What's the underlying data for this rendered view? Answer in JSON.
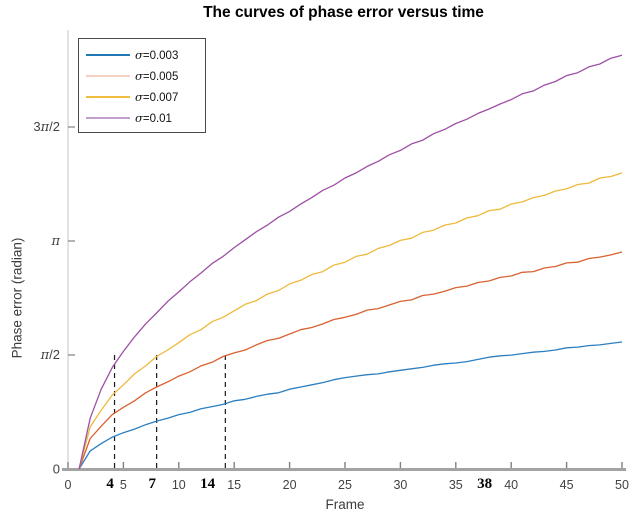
{
  "figure": {
    "title": "The curves of phase error versus time",
    "xlabel": "Frame",
    "ylabel": "Phase error (radian)"
  },
  "colors": {
    "axis_line": "#a3a3a3",
    "y_axis_line": "#c4c4c4",
    "tick_mark": "#808080",
    "annotation_line": "#1a1a1a",
    "background": "#ffffff"
  },
  "chart_data": {
    "type": "line",
    "title": "The curves of phase error versus time",
    "xlabel": "Frame",
    "ylabel": "Phase error (radian)",
    "xlim": [
      0,
      50
    ],
    "ylim": [
      0,
      6.05
    ],
    "grid": false,
    "legend_position": "top-left",
    "x_ticks": [
      0,
      5,
      10,
      15,
      20,
      25,
      30,
      35,
      40,
      45,
      50
    ],
    "y_ticks": [
      {
        "value": 0,
        "label": "0"
      },
      {
        "value": 1.5708,
        "label": "π/2"
      },
      {
        "value": 3.1416,
        "label": "π"
      },
      {
        "value": 4.7124,
        "label": "3π/2"
      }
    ],
    "x_start": 1,
    "x_step": 1,
    "series": [
      {
        "name": "σ=0.003",
        "color": "#2b7fc0",
        "legend_color": "#2277b5",
        "values": [
          0,
          0.25,
          0.35,
          0.44,
          0.5,
          0.55,
          0.61,
          0.66,
          0.7,
          0.75,
          0.78,
          0.83,
          0.86,
          0.89,
          0.94,
          0.96,
          1.0,
          1.03,
          1.05,
          1.1,
          1.13,
          1.16,
          1.19,
          1.23,
          1.26,
          1.28,
          1.3,
          1.31,
          1.34,
          1.36,
          1.38,
          1.4,
          1.43,
          1.45,
          1.46,
          1.48,
          1.51,
          1.54,
          1.56,
          1.57,
          1.59,
          1.61,
          1.62,
          1.64,
          1.67,
          1.68,
          1.7,
          1.71,
          1.73,
          1.75
        ]
      },
      {
        "name": "σ=0.005",
        "color": "#d96231",
        "legend_color": "#f4d0c0",
        "values": [
          0,
          0.42,
          0.59,
          0.75,
          0.85,
          0.94,
          1.05,
          1.13,
          1.2,
          1.28,
          1.34,
          1.42,
          1.47,
          1.55,
          1.6,
          1.64,
          1.71,
          1.77,
          1.8,
          1.86,
          1.92,
          1.95,
          2.0,
          2.06,
          2.09,
          2.13,
          2.19,
          2.21,
          2.26,
          2.31,
          2.33,
          2.39,
          2.41,
          2.45,
          2.5,
          2.52,
          2.57,
          2.59,
          2.64,
          2.66,
          2.71,
          2.72,
          2.77,
          2.79,
          2.84,
          2.85,
          2.9,
          2.92,
          2.95,
          2.99
        ]
      },
      {
        "name": "σ=0.007",
        "color": "#eeb93c",
        "legend_color": "#f0bc3f",
        "values": [
          0,
          0.58,
          0.81,
          1.02,
          1.16,
          1.31,
          1.42,
          1.55,
          1.64,
          1.74,
          1.85,
          1.92,
          2.03,
          2.09,
          2.18,
          2.27,
          2.32,
          2.41,
          2.46,
          2.55,
          2.6,
          2.68,
          2.72,
          2.81,
          2.85,
          2.93,
          2.96,
          3.04,
          3.08,
          3.15,
          3.18,
          3.26,
          3.29,
          3.36,
          3.39,
          3.46,
          3.49,
          3.56,
          3.58,
          3.65,
          3.68,
          3.74,
          3.77,
          3.83,
          3.86,
          3.92,
          3.94,
          4.01,
          4.03,
          4.08
        ]
      },
      {
        "name": "σ=0.01",
        "color": "#9d50a5",
        "legend_color": "#c39ecf",
        "values": [
          0,
          0.7,
          1.1,
          1.4,
          1.62,
          1.82,
          2.0,
          2.15,
          2.31,
          2.44,
          2.58,
          2.7,
          2.83,
          2.93,
          3.05,
          3.16,
          3.27,
          3.36,
          3.47,
          3.55,
          3.65,
          3.74,
          3.84,
          3.91,
          4.01,
          4.08,
          4.17,
          4.24,
          4.33,
          4.39,
          4.48,
          4.53,
          4.62,
          4.68,
          4.76,
          4.82,
          4.9,
          4.96,
          5.03,
          5.09,
          5.17,
          5.21,
          5.29,
          5.34,
          5.42,
          5.46,
          5.54,
          5.58,
          5.66,
          5.7
        ]
      }
    ],
    "annotations": [
      {
        "label": "4",
        "label_frame": 3.8,
        "line_frame": 4.2,
        "has_line": true,
        "line_top_value": 1.5708
      },
      {
        "label": "7",
        "label_frame": 7.6,
        "line_frame": 8.0,
        "has_line": true,
        "line_top_value": 1.5708
      },
      {
        "label": "14",
        "label_frame": 12.6,
        "line_frame": 14.2,
        "has_line": true,
        "line_top_value": 1.5708
      },
      {
        "label": "38",
        "label_frame": 37.6,
        "has_line": false
      }
    ]
  }
}
